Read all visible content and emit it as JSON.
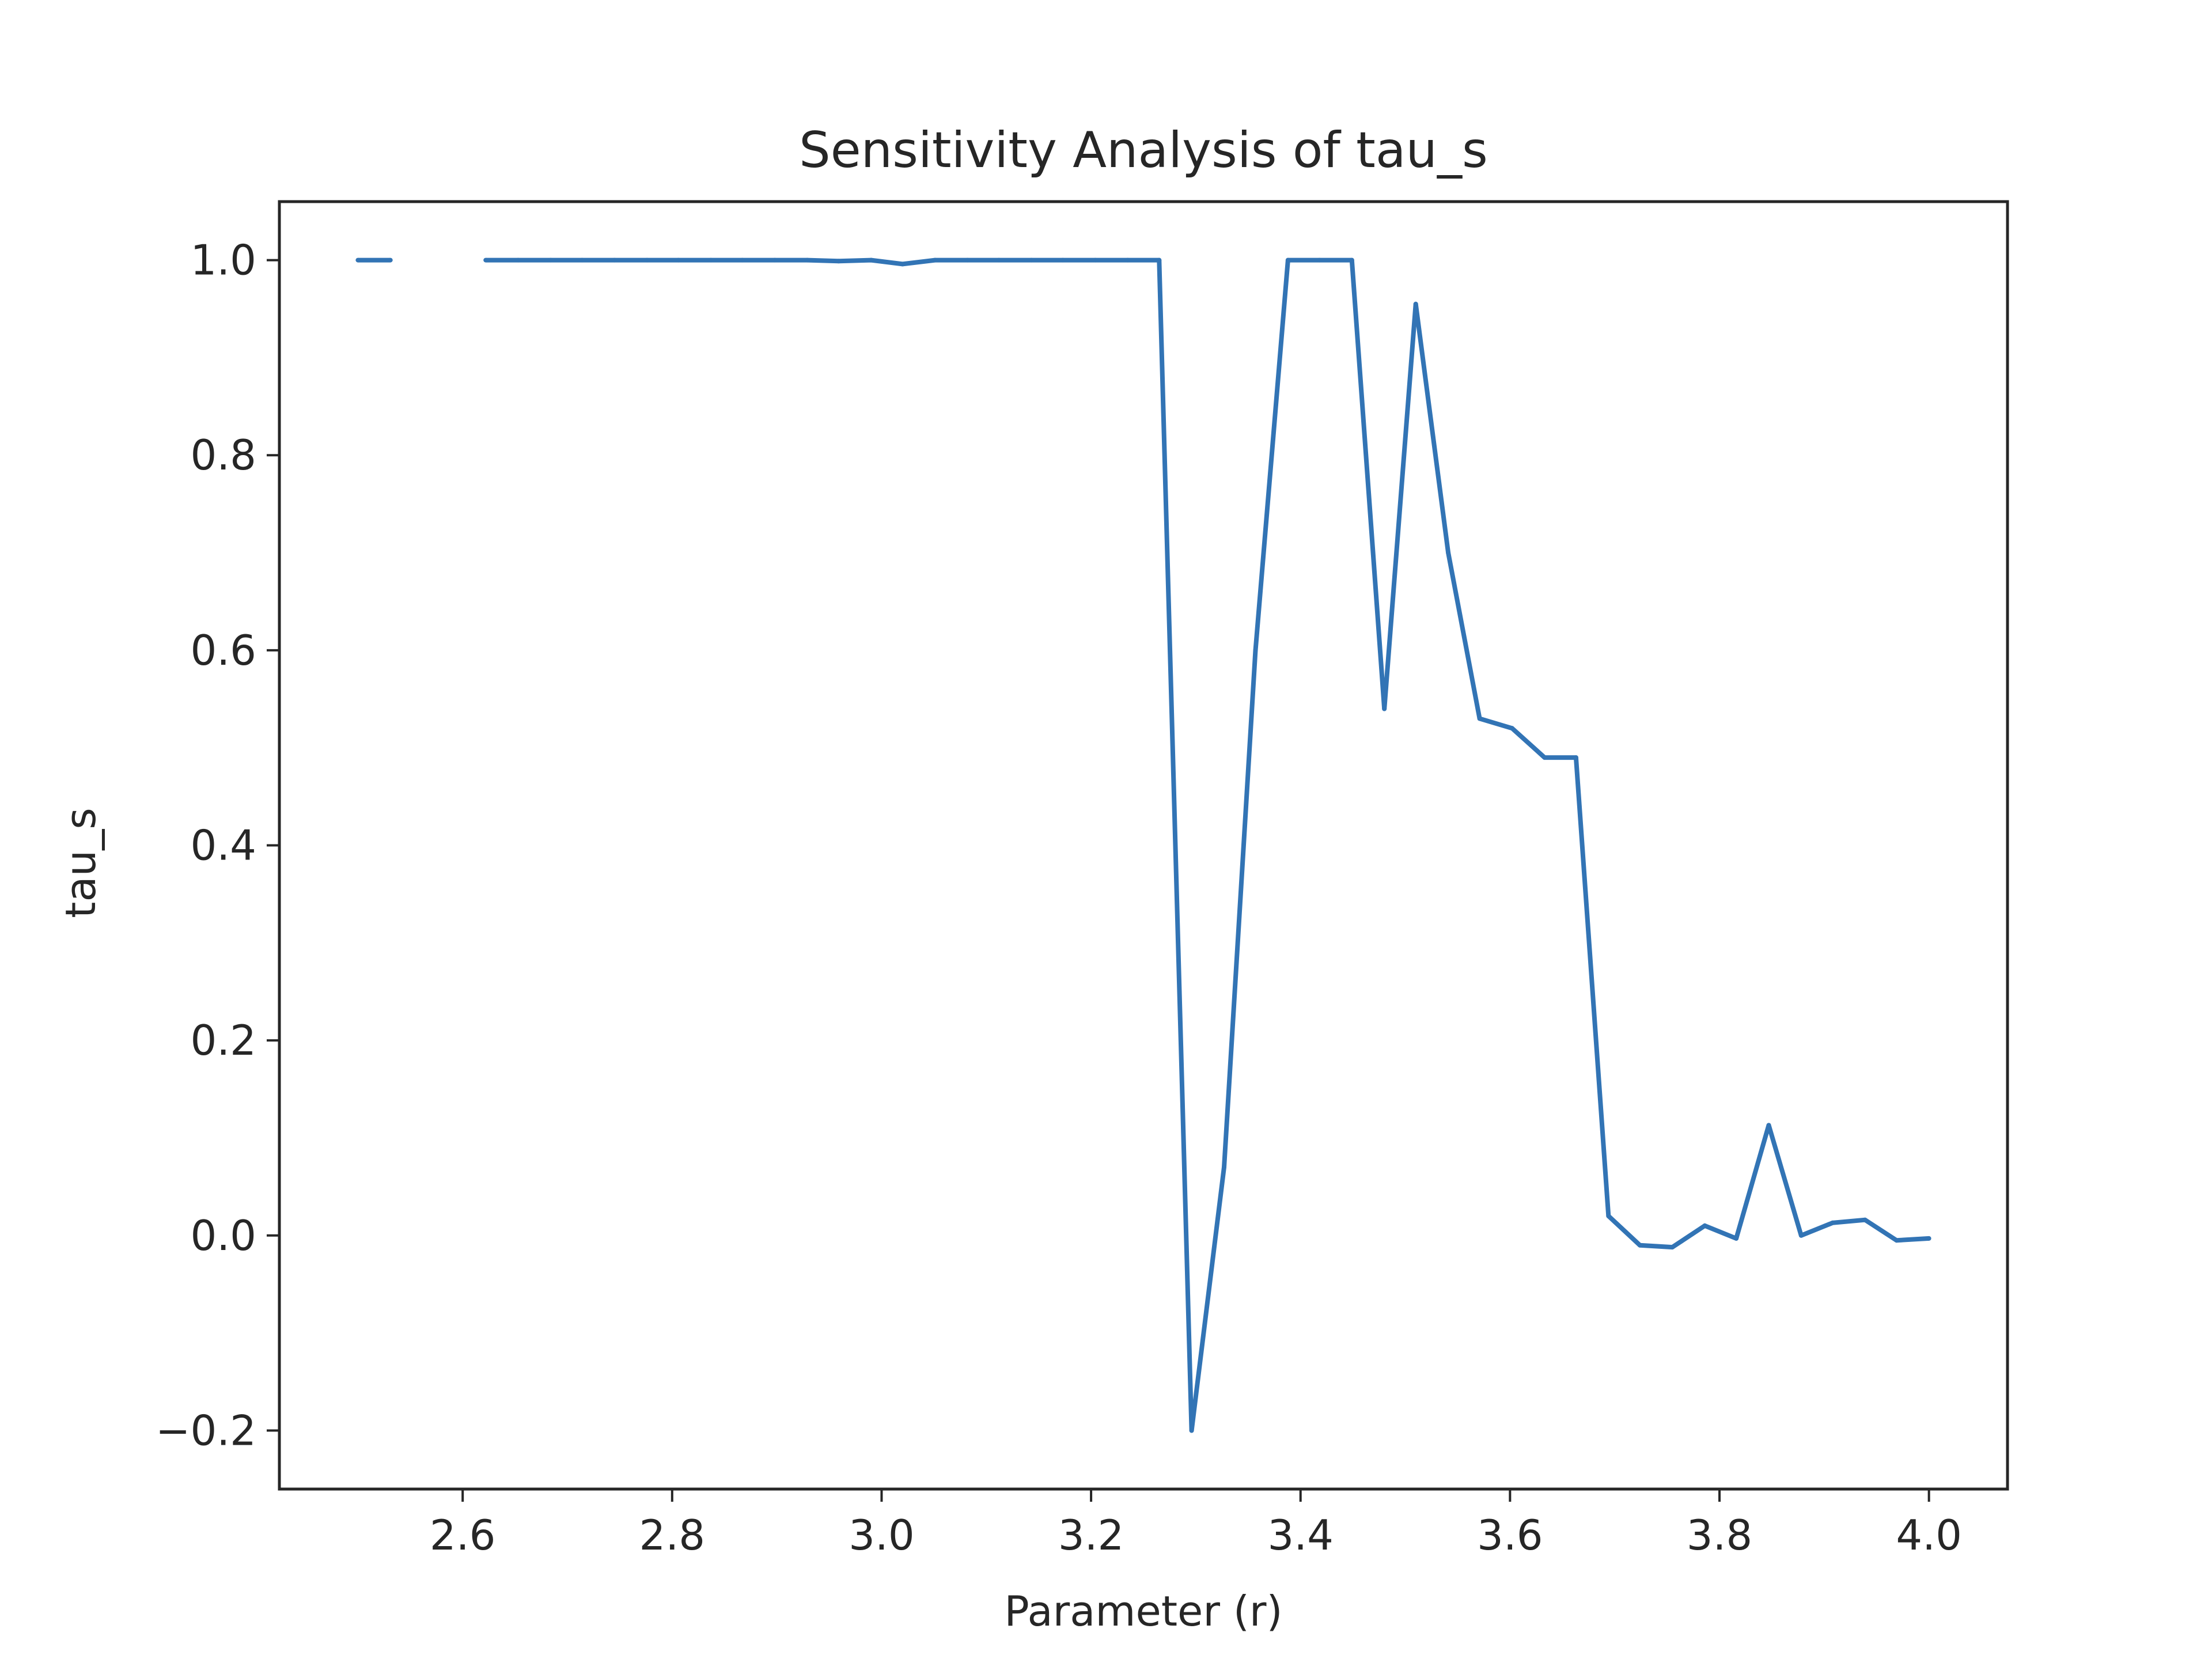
{
  "chart_data": {
    "type": "line",
    "title": "Sensitivity Analysis of tau_s",
    "xlabel": "Parameter (r)",
    "ylabel": "tau_s",
    "xlim": [
      2.425,
      4.075
    ],
    "ylim": [
      -0.26,
      1.06
    ],
    "xticks": [
      2.6,
      2.8,
      3.0,
      3.2,
      3.4,
      3.6,
      3.8,
      4.0
    ],
    "xtick_labels": [
      "2.6",
      "2.8",
      "3.0",
      "3.2",
      "3.4",
      "3.6",
      "3.8",
      "4.0"
    ],
    "yticks": [
      -0.2,
      0.0,
      0.2,
      0.4,
      0.6,
      0.8,
      1.0
    ],
    "ytick_labels": [
      "−0.2",
      "0.0",
      "0.2",
      "0.4",
      "0.6",
      "0.8",
      "1.0"
    ],
    "grid": false,
    "legend": "none",
    "series": [
      {
        "color": "#3274b5",
        "x": [
          2.5,
          2.531,
          2.561,
          2.592,
          2.622,
          2.653,
          2.684,
          2.714,
          2.745,
          2.776,
          2.806,
          2.837,
          2.867,
          2.898,
          2.929,
          2.959,
          2.99,
          3.02,
          3.051,
          3.082,
          3.112,
          3.143,
          3.173,
          3.204,
          3.235,
          3.265,
          3.296,
          3.327,
          3.357,
          3.388,
          3.418,
          3.449,
          3.48,
          3.51,
          3.541,
          3.571,
          3.602,
          3.633,
          3.663,
          3.694,
          3.724,
          3.755,
          3.786,
          3.816,
          3.847,
          3.878,
          3.908,
          3.939,
          3.969,
          4.0
        ],
        "y": [
          1.0,
          1.0,
          null,
          null,
          1.0,
          1.0,
          1.0,
          1.0,
          1.0,
          1.0,
          1.0,
          1.0,
          1.0,
          1.0,
          1.0,
          0.999,
          1.0,
          0.996,
          1.0,
          1.0,
          1.0,
          1.0,
          1.0,
          1.0,
          1.0,
          1.0,
          -0.2,
          0.07,
          0.6,
          1.0,
          1.0,
          1.0,
          0.54,
          0.955,
          0.7,
          0.53,
          0.52,
          0.49,
          0.49,
          0.02,
          -0.01,
          -0.012,
          0.01,
          -0.003,
          0.113,
          0.0,
          0.013,
          0.016,
          -0.005,
          -0.003
        ]
      }
    ]
  }
}
